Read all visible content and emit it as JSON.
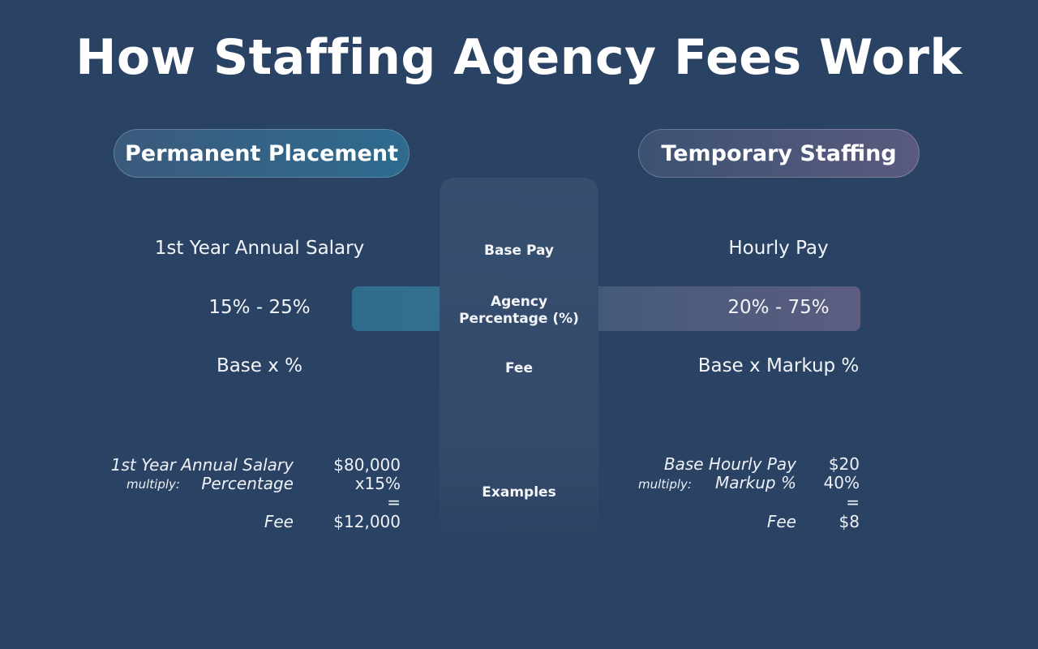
{
  "title": "How Staffing Agency Fees Work",
  "left": {
    "header": "Permanent Placement",
    "base": "1st Year Annual Salary",
    "percentage": "15% - 25%",
    "fee": "Base x %",
    "example": {
      "base_label": "1st Year Annual Salary",
      "multiply_label": "multiply:",
      "percentage_label": "Percentage",
      "fee_label": "Fee",
      "base_value": "$80,000",
      "percentage_value": "x15%",
      "equals": "=",
      "fee_value": "$12,000"
    }
  },
  "middle": {
    "base": "Base Pay",
    "percentage": "Agency Percentage (%)",
    "fee": "Fee",
    "examples": "Examples"
  },
  "right": {
    "header": "Temporary Staffing",
    "base": "Hourly Pay",
    "percentage": "20% - 75%",
    "fee": "Base x Markup %",
    "example": {
      "base_label": "Base Hourly Pay",
      "multiply_label": "multiply:",
      "percentage_label": "Markup %",
      "fee_label": "Fee",
      "base_value": "$20",
      "percentage_value": "40%",
      "equals": "=",
      "fee_value": "$8"
    }
  },
  "colors": {
    "background": "#2a4263",
    "left_accent": "#2f6d8e",
    "right_accent": "#5c5d80",
    "column": "#364f6f"
  }
}
